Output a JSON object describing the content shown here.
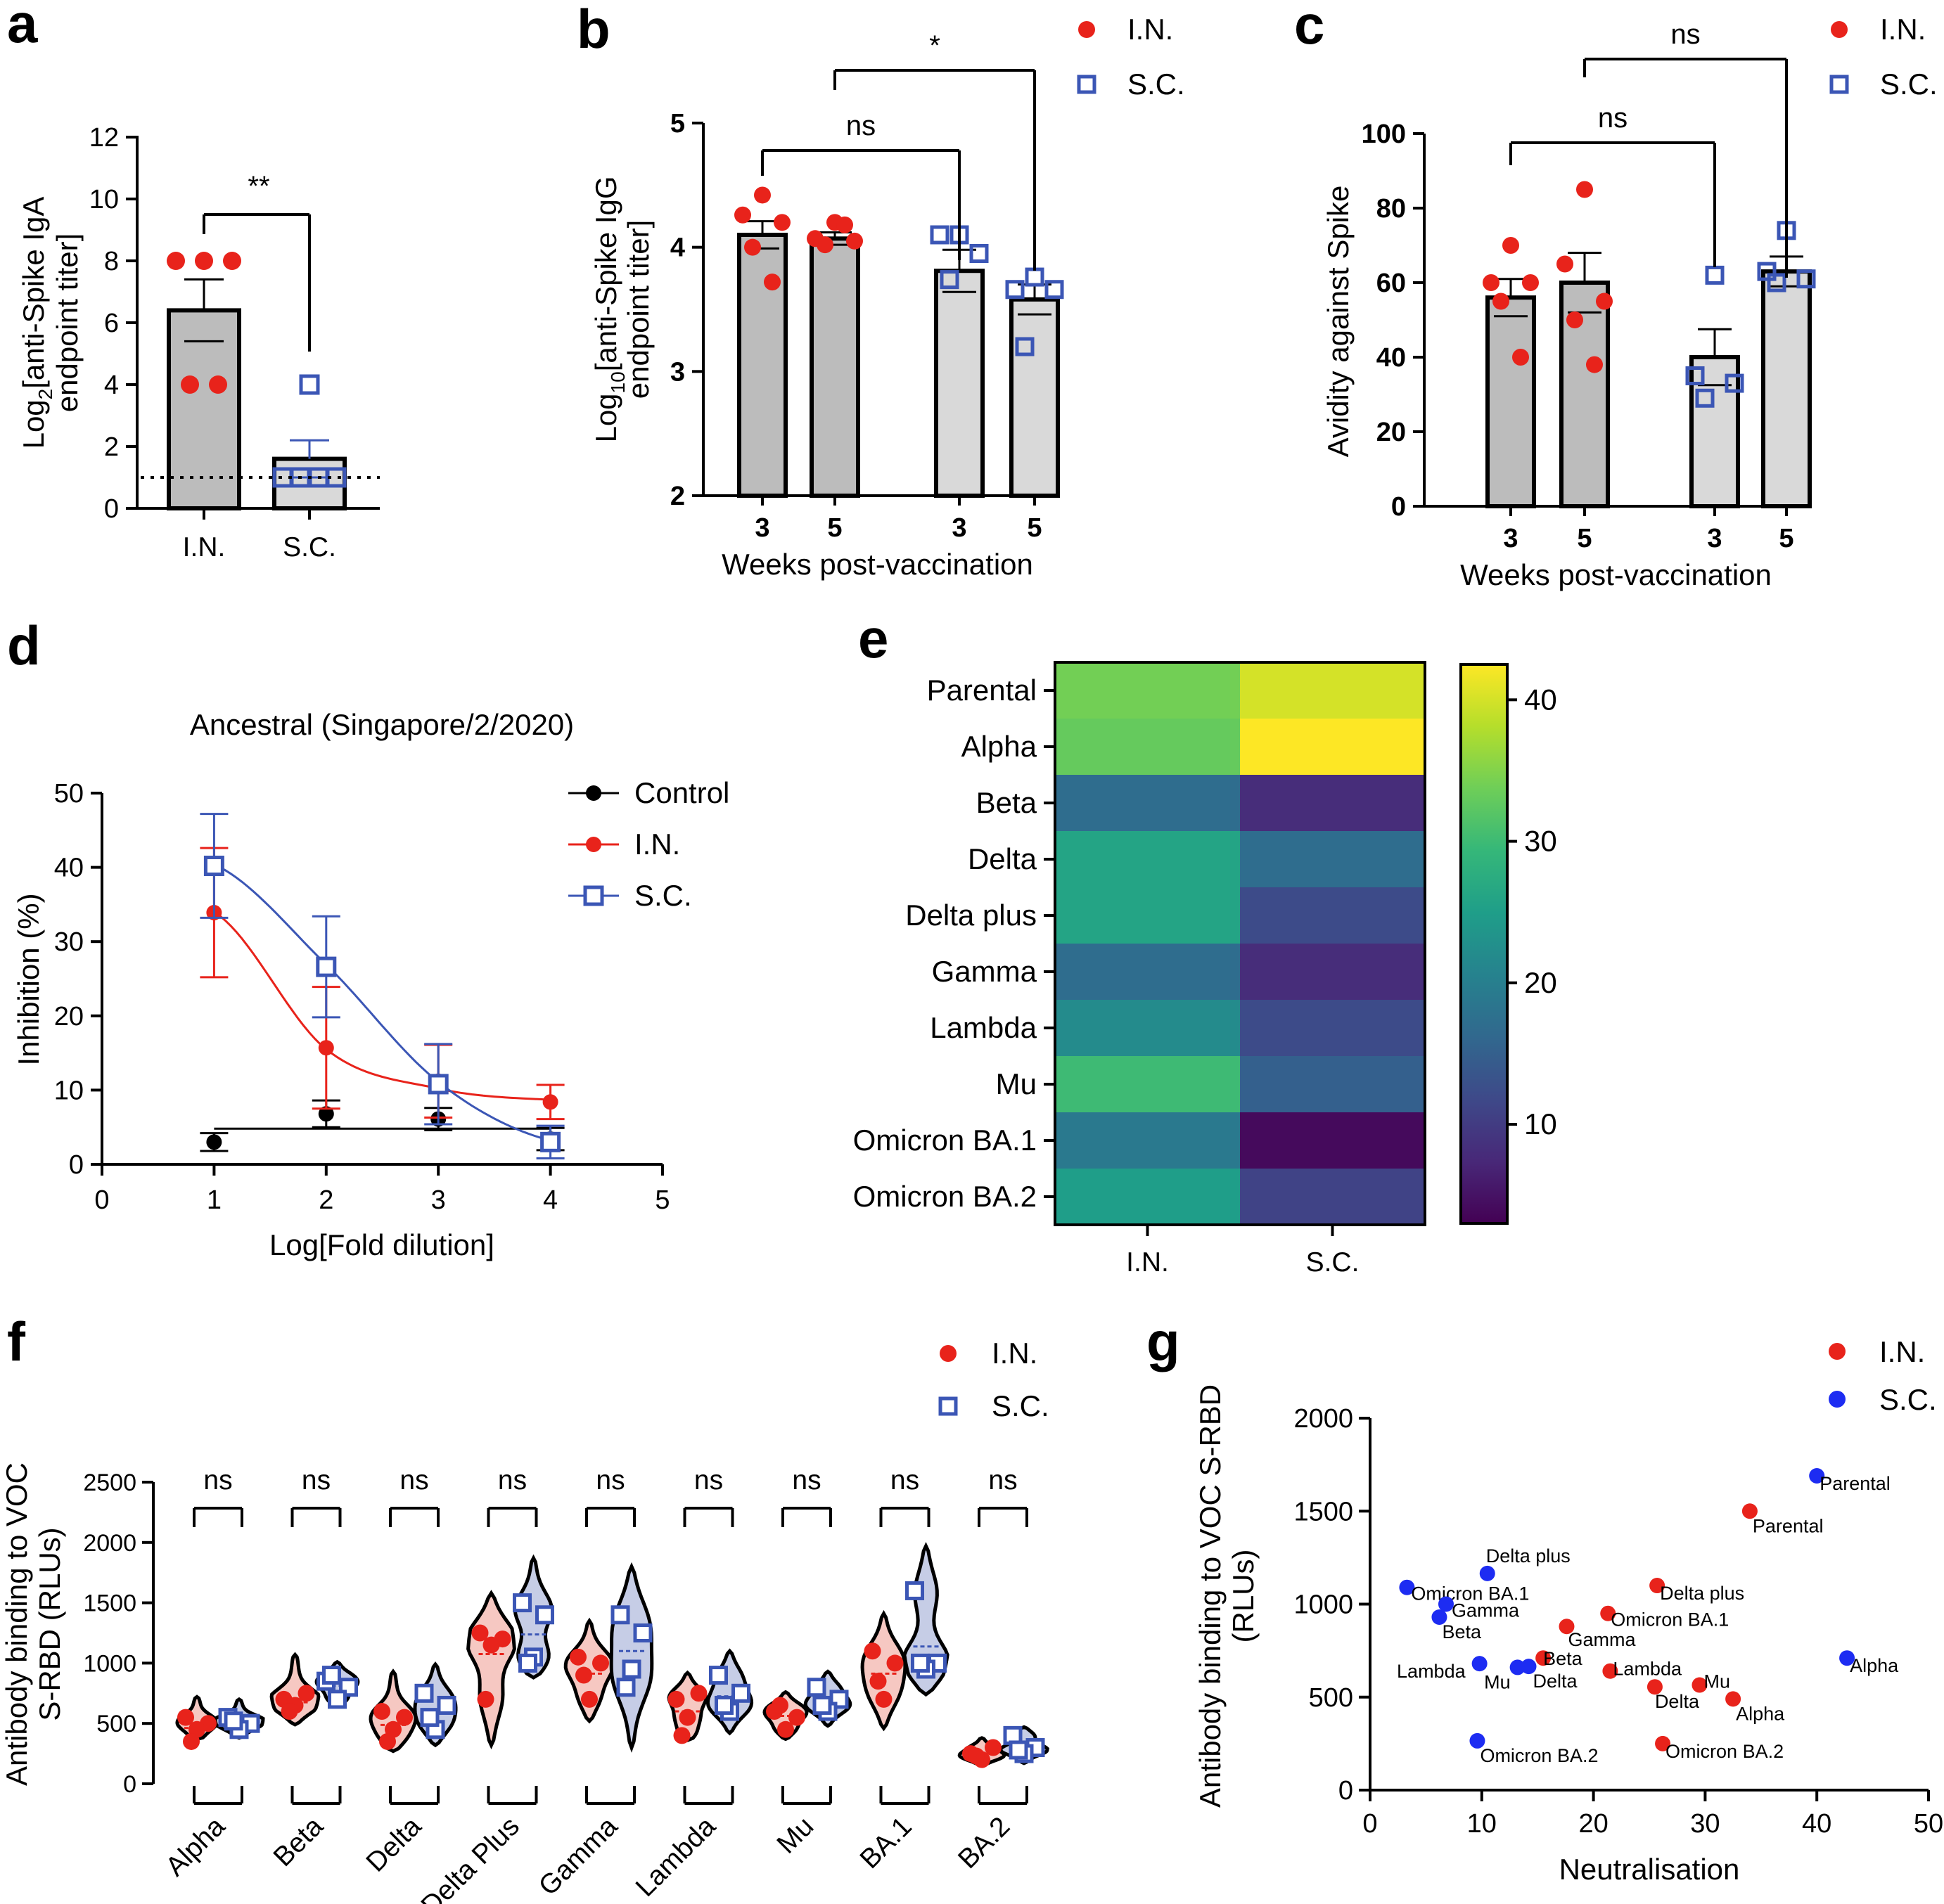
{
  "colors": {
    "IN": "#e8231b",
    "SC": "#3b56b5",
    "SC_g": "#1d2cf2",
    "control": "#000000",
    "bar_IN": "#bcbcbc",
    "bar_SC": "#d9d9d9",
    "violin_IN": "#f6c8c2",
    "violin_SC": "#c6cde6",
    "viridis": [
      "#440154",
      "#482878",
      "#3e4989",
      "#31688e",
      "#26828e",
      "#1f9e89",
      "#35b779",
      "#6ece58",
      "#b5de2b",
      "#fde725"
    ]
  },
  "chart_data": [
    {
      "panel": "a",
      "type": "bar",
      "ylabel_main": "Log",
      "ylabel_sub": "2",
      "ylabel_rest": "[anti-Spike IgA",
      "ylabel_line2": "endpoint titer]",
      "ylim": [
        0,
        12
      ],
      "yticks": [
        "0",
        "2",
        "4",
        "6",
        "8",
        "10",
        "12"
      ],
      "categories": [
        "I.N.",
        "S.C."
      ],
      "means": [
        6.4,
        1.6
      ],
      "sem": [
        1.0,
        0.6
      ],
      "points": [
        [
          8,
          8,
          8,
          4,
          4
        ],
        [
          4,
          1,
          1,
          1,
          1
        ]
      ],
      "detection_limit": 1,
      "significance": "**"
    },
    {
      "panel": "b",
      "type": "bar",
      "ylabel_main": "Log",
      "ylabel_sub": "10",
      "ylabel_rest": "[anti-Spike IgG",
      "ylabel_line2": "endpoint titer]",
      "xlabel": "Weeks post-vaccination",
      "ylim": [
        2,
        5
      ],
      "yticks": [
        "2",
        "3",
        "4",
        "5"
      ],
      "categories": [
        "3",
        "5",
        "3",
        "5"
      ],
      "groups": [
        "I.N.",
        "I.N.",
        "S.C.",
        "S.C."
      ],
      "means": [
        4.1,
        4.07,
        3.81,
        3.58
      ],
      "sem": [
        0.11,
        0.05,
        0.17,
        0.12
      ],
      "points": [
        [
          4.42,
          4.26,
          4.2,
          4.0,
          3.72
        ],
        [
          4.2,
          4.07,
          4.05,
          4.02,
          4.18
        ],
        [
          4.1,
          4.1,
          3.95,
          3.74
        ],
        [
          3.76,
          3.66,
          3.66,
          3.2
        ]
      ],
      "legend": [
        "I.N.",
        "S.C."
      ],
      "comparisons": [
        {
          "bars": [
            0,
            2
          ],
          "label": "ns"
        },
        {
          "bars": [
            1,
            3
          ],
          "label": "*"
        }
      ]
    },
    {
      "panel": "c",
      "type": "bar",
      "ylabel": "Avidity against Spike",
      "xlabel": "Weeks post-vaccination",
      "ylim": [
        0,
        100
      ],
      "yticks": [
        "0",
        "20",
        "40",
        "60",
        "80",
        "100"
      ],
      "categories": [
        "3",
        "5",
        "3",
        "5"
      ],
      "groups": [
        "I.N.",
        "I.N.",
        "S.C.",
        "S.C."
      ],
      "means": [
        56,
        60,
        40,
        63
      ],
      "sem": [
        5,
        8,
        7.5,
        4
      ],
      "points": [
        [
          70,
          60,
          60,
          55,
          40
        ],
        [
          85,
          65,
          55,
          50,
          38
        ],
        [
          62,
          35,
          33,
          29
        ],
        [
          74,
          63,
          61,
          60
        ]
      ],
      "legend": [
        "I.N.",
        "S.C."
      ],
      "comparisons": [
        {
          "bars": [
            0,
            2
          ],
          "label": "ns"
        },
        {
          "bars": [
            1,
            3
          ],
          "label": "ns"
        }
      ]
    },
    {
      "panel": "d",
      "type": "line",
      "title": "Ancestral (Singapore/2/2020)",
      "xlabel": "Log[Fold dilution]",
      "ylabel": "Inhibition (%)",
      "xlim": [
        0,
        5
      ],
      "ylim": [
        0,
        50
      ],
      "xticks": [
        "0",
        "1",
        "2",
        "3",
        "4",
        "5"
      ],
      "yticks": [
        "0",
        "10",
        "20",
        "30",
        "40",
        "50"
      ],
      "x": [
        1,
        2,
        3,
        4
      ],
      "series": [
        {
          "name": "Control",
          "values": [
            3.0,
            6.8,
            6.1,
            3.4
          ],
          "err": [
            1.2,
            1.8,
            1.5,
            1.5
          ],
          "fit": [
            4.8,
            4.8,
            4.8,
            4.8
          ]
        },
        {
          "name": "I.N.",
          "values": [
            33.9,
            15.7,
            11.2,
            8.4
          ],
          "err": [
            8.7,
            8.2,
            4.9,
            2.3
          ],
          "fit": [
            34,
            15.5,
            10.2,
            8.7
          ]
        },
        {
          "name": "S.C.",
          "values": [
            40.2,
            26.6,
            10.8,
            3.0
          ],
          "err": [
            7.0,
            6.8,
            5.4,
            2.2
          ],
          "fit": [
            40.4,
            26.9,
            11.1,
            3.2
          ]
        }
      ]
    },
    {
      "panel": "e",
      "type": "heatmap",
      "rows": [
        "Parental",
        "Alpha",
        "Beta",
        "Delta",
        "Delta plus",
        "Gamma",
        "Lambda",
        "Mu",
        "Omicron BA.1",
        "Omicron BA.2"
      ],
      "columns": [
        "I.N.",
        "S.C."
      ],
      "values": [
        [
          34,
          40
        ],
        [
          33,
          43
        ],
        [
          17,
          8
        ],
        [
          26,
          17
        ],
        [
          26,
          12
        ],
        [
          17,
          8
        ],
        [
          22,
          12
        ],
        [
          30,
          15
        ],
        [
          19,
          4
        ],
        [
          25,
          11
        ]
      ],
      "colorbar_range": [
        3,
        42.5
      ],
      "colorbar_ticks": [
        "10",
        "20",
        "30",
        "40"
      ]
    },
    {
      "panel": "f",
      "type": "violin",
      "ylabel": "Antibody binding to VOC",
      "ylabel_line2": "S-RBD (RLUs)",
      "ylim": [
        0,
        2500
      ],
      "yticks": [
        "0",
        "500",
        "1000",
        "1500",
        "2000",
        "2500"
      ],
      "categories": [
        "Alpha",
        "Beta",
        "Delta",
        "Delta Plus",
        "Gamma",
        "Lambda",
        "Mu",
        "BA.1",
        "BA.2"
      ],
      "legend": [
        "I.N.",
        "S.C."
      ],
      "significance": [
        "ns",
        "ns",
        "ns",
        "ns",
        "ns",
        "ns",
        "ns",
        "ns",
        "ns"
      ],
      "IN": [
        [
          550,
          500,
          450,
          350
        ],
        [
          700,
          750,
          650,
          600
        ],
        [
          600,
          550,
          450,
          350
        ],
        [
          1250,
          1200,
          1150,
          700
        ],
        [
          1050,
          1000,
          700,
          900
        ],
        [
          700,
          750,
          550,
          400
        ],
        [
          600,
          550,
          450,
          650
        ],
        [
          1100,
          1000,
          700,
          850
        ],
        [
          250,
          300,
          200,
          230
        ]
      ],
      "SC": [
        [
          550,
          500,
          450,
          520
        ],
        [
          850,
          800,
          700,
          900
        ],
        [
          750,
          650,
          450,
          550
        ],
        [
          1500,
          1400,
          1050,
          1000
        ],
        [
          1400,
          1250,
          950,
          800
        ],
        [
          900,
          750,
          600,
          650
        ],
        [
          800,
          700,
          600,
          650
        ],
        [
          1600,
          1000,
          950,
          1000
        ],
        [
          400,
          300,
          250,
          280
        ]
      ],
      "IN_range": [
        [
          370,
          720
        ],
        [
          490,
          1070
        ],
        [
          270,
          930
        ],
        [
          320,
          1580
        ],
        [
          520,
          1350
        ],
        [
          360,
          920
        ],
        [
          370,
          760
        ],
        [
          460,
          1410
        ],
        [
          150,
          380
        ]
      ],
      "SC_range": [
        [
          380,
          700
        ],
        [
          640,
          1010
        ],
        [
          320,
          990
        ],
        [
          880,
          1870
        ],
        [
          300,
          1800
        ],
        [
          420,
          1100
        ],
        [
          480,
          930
        ],
        [
          740,
          1970
        ],
        [
          170,
          470
        ]
      ]
    },
    {
      "panel": "g",
      "type": "scatter",
      "xlabel": "Neutralisation",
      "ylabel": "Antibody binding to VOC S-RBD",
      "ylabel_line2": "(RLUs)",
      "xlim": [
        0,
        50
      ],
      "ylim": [
        0,
        2000
      ],
      "xticks": [
        "0",
        "10",
        "20",
        "30",
        "40",
        "50"
      ],
      "yticks": [
        "0",
        "500",
        "1000",
        "1500",
        "2000"
      ],
      "legend": [
        "I.N.",
        "S.C."
      ],
      "series": [
        {
          "name": "I.N.",
          "points": [
            {
              "label": "Parental",
              "x": 34,
              "y": 1500
            },
            {
              "label": "Delta plus",
              "x": 25.7,
              "y": 1100
            },
            {
              "label": "Omicron BA.1",
              "x": 21.3,
              "y": 950
            },
            {
              "label": "Gamma",
              "x": 17.6,
              "y": 880
            },
            {
              "label": "Beta",
              "x": 15.5,
              "y": 710
            },
            {
              "label": "Lambda",
              "x": 21.5,
              "y": 640
            },
            {
              "label": "Delta",
              "x": 25.5,
              "y": 555
            },
            {
              "label": "Mu",
              "x": 29.5,
              "y": 565
            },
            {
              "label": "Alpha",
              "x": 32.5,
              "y": 490
            },
            {
              "label": "Omicron BA.2",
              "x": 26.2,
              "y": 250
            }
          ]
        },
        {
          "name": "S.C.",
          "points": [
            {
              "label": "Parental",
              "x": 40,
              "y": 1690
            },
            {
              "label": "Alpha",
              "x": 42.7,
              "y": 710
            },
            {
              "label": "Delta plus",
              "x": 10.5,
              "y": 1165
            },
            {
              "label": "Omicron BA.1",
              "x": 3.3,
              "y": 1090
            },
            {
              "label": "Gamma",
              "x": 6.8,
              "y": 1000
            },
            {
              "label": "Beta",
              "x": 6.2,
              "y": 930
            },
            {
              "label": "Lambda",
              "x": 9.8,
              "y": 680
            },
            {
              "label": "Mu",
              "x": 13.2,
              "y": 660
            },
            {
              "label": "Delta",
              "x": 14.2,
              "y": 665
            },
            {
              "label": "Omicron BA.2",
              "x": 9.6,
              "y": 265
            }
          ]
        }
      ]
    }
  ]
}
